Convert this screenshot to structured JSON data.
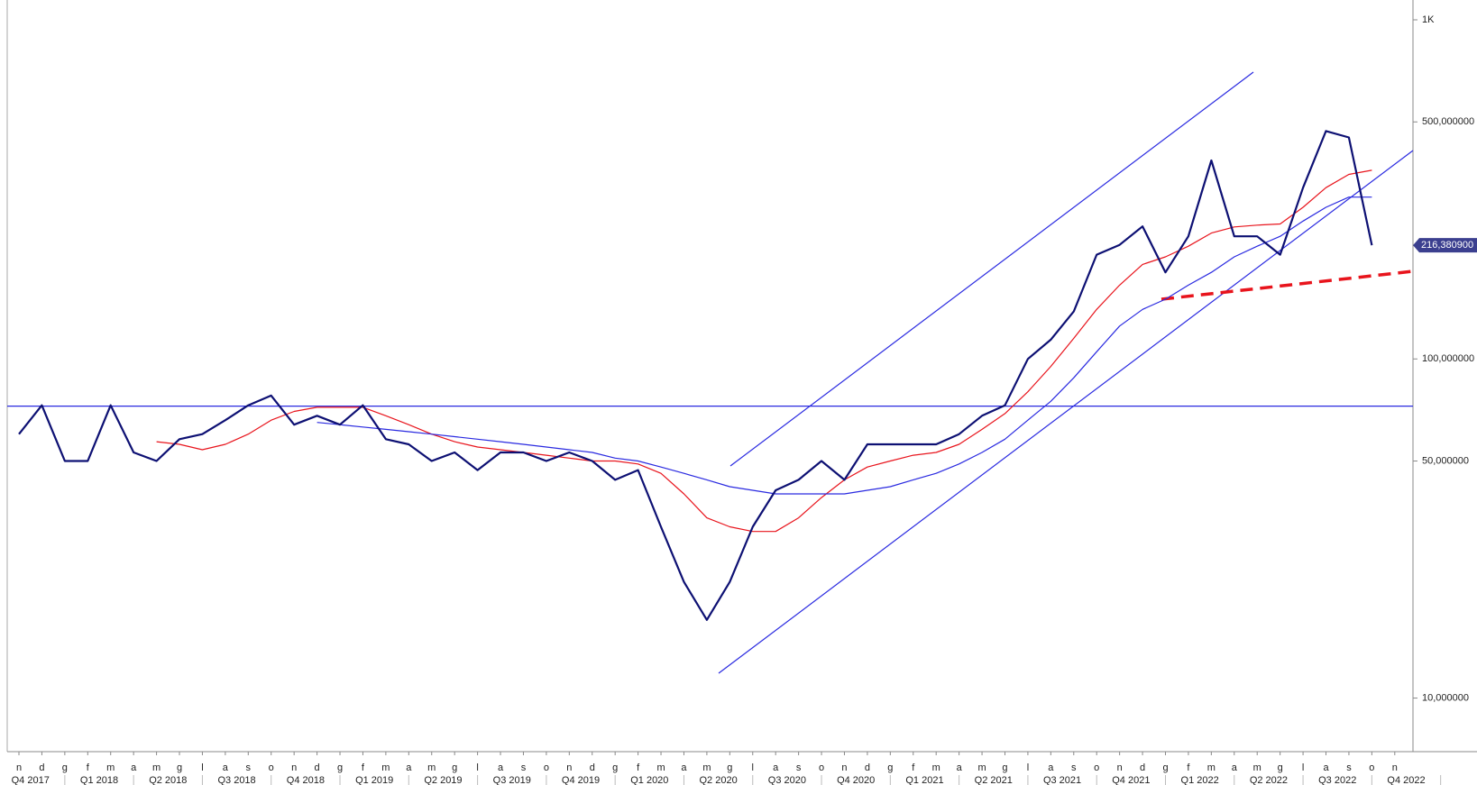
{
  "chart_data": {
    "type": "line",
    "log_scale": true,
    "grid": false,
    "x": [
      "2017-11",
      "2017-12",
      "2018-01",
      "2018-02",
      "2018-03",
      "2018-04",
      "2018-05",
      "2018-06",
      "2018-07",
      "2018-08",
      "2018-09",
      "2018-10",
      "2018-11",
      "2018-12",
      "2019-01",
      "2019-02",
      "2019-03",
      "2019-04",
      "2019-05",
      "2019-06",
      "2019-07",
      "2019-08",
      "2019-09",
      "2019-10",
      "2019-11",
      "2019-12",
      "2020-01",
      "2020-02",
      "2020-03",
      "2020-04",
      "2020-05",
      "2020-06",
      "2020-07",
      "2020-08",
      "2020-09",
      "2020-10",
      "2020-11",
      "2020-12",
      "2021-01",
      "2021-02",
      "2021-03",
      "2021-04",
      "2021-05",
      "2021-06",
      "2021-07",
      "2021-08",
      "2021-09",
      "2021-10",
      "2021-11",
      "2021-12",
      "2022-01",
      "2022-02",
      "2022-03",
      "2022-04",
      "2022-05",
      "2022-06",
      "2022-07",
      "2022-08",
      "2022-09",
      "2022-10"
    ],
    "series": [
      {
        "color": "#0d1073",
        "values": [
          60,
          73,
          50,
          50,
          73,
          53,
          50,
          58,
          60,
          66,
          73,
          78,
          64,
          68,
          64,
          73,
          58,
          56,
          50,
          53,
          47,
          53,
          53,
          50,
          53,
          50,
          44,
          47,
          32,
          22,
          17,
          22,
          32,
          41,
          44,
          50,
          44,
          56,
          56,
          56,
          56,
          60,
          68,
          73,
          100,
          114,
          138,
          203,
          217,
          246,
          180,
          230,
          385,
          230,
          230,
          203,
          320,
          470,
          450,
          216.3809
        ],
        "value_labels": [
          null,
          null,
          null,
          null,
          null,
          null,
          null,
          null,
          null,
          null,
          null,
          null,
          null,
          null,
          null,
          null,
          null,
          null,
          null,
          null,
          null,
          null,
          null,
          null,
          null,
          null,
          null,
          null,
          null,
          null,
          null,
          null,
          null,
          null,
          null,
          null,
          null,
          null,
          null,
          null,
          null,
          null,
          null,
          null,
          null,
          null,
          null,
          null,
          null,
          null,
          null,
          null,
          null,
          null,
          null,
          null,
          null,
          null,
          null,
          "216,380900"
        ]
      },
      {
        "color": "#e8141c",
        "values": [
          null,
          null,
          null,
          null,
          null,
          null,
          57,
          56,
          54,
          56,
          60,
          66,
          70,
          72,
          72,
          72,
          68,
          64,
          60,
          57,
          55,
          54,
          53,
          52,
          51,
          50,
          50,
          49,
          46,
          40,
          34,
          32,
          31,
          31,
          34,
          39,
          44,
          48,
          50,
          52,
          53,
          56,
          62,
          69,
          80,
          95,
          115,
          140,
          165,
          190,
          200,
          215,
          235,
          245,
          248,
          250,
          280,
          320,
          350,
          360
        ]
      },
      {
        "color": "#2a2ae0",
        "values": [
          null,
          null,
          null,
          null,
          null,
          null,
          null,
          null,
          null,
          null,
          null,
          null,
          null,
          65,
          64,
          63,
          62,
          61,
          60,
          59,
          58,
          57,
          56,
          55,
          54,
          53,
          51,
          50,
          48,
          46,
          44,
          42,
          41,
          40,
          40,
          40,
          40,
          41,
          42,
          44,
          46,
          49,
          53,
          58,
          66,
          75,
          88,
          105,
          125,
          140,
          150,
          165,
          180,
          200,
          215,
          230,
          255,
          280,
          300,
          300
        ]
      }
    ],
    "reference_line": 72.6,
    "ylim": [
      6.95,
      1144
    ],
    "yticks": [
      {
        "value": 10,
        "label": "10,000000"
      },
      {
        "value": 50,
        "label": "50,000000"
      },
      {
        "value": 100,
        "label": "100,000000"
      },
      {
        "value": 500,
        "label": "500,000000"
      },
      {
        "value": 1000,
        "label": "1K"
      }
    ],
    "xticks": [
      {
        "value": "2017-11",
        "label": "n"
      },
      {
        "value": "2017-12",
        "label": "d"
      },
      {
        "value": "2018-01",
        "label": "g"
      },
      {
        "value": "2018-02",
        "label": "f"
      },
      {
        "value": "2018-03",
        "label": "m"
      },
      {
        "value": "2018-04",
        "label": "a"
      },
      {
        "value": "2018-05",
        "label": "m"
      },
      {
        "value": "2018-06",
        "label": "g"
      },
      {
        "value": "2018-07",
        "label": "l"
      },
      {
        "value": "2018-08",
        "label": "a"
      },
      {
        "value": "2018-09",
        "label": "s"
      },
      {
        "value": "2018-10",
        "label": "o"
      },
      {
        "value": "2018-11",
        "label": "n"
      },
      {
        "value": "2018-12",
        "label": "d"
      },
      {
        "value": "2019-01",
        "label": "g"
      },
      {
        "value": "2019-02",
        "label": "f"
      },
      {
        "value": "2019-03",
        "label": "m"
      },
      {
        "value": "2019-04",
        "label": "a"
      },
      {
        "value": "2019-05",
        "label": "m"
      },
      {
        "value": "2019-06",
        "label": "g"
      },
      {
        "value": "2019-07",
        "label": "l"
      },
      {
        "value": "2019-08",
        "label": "a"
      },
      {
        "value": "2019-09",
        "label": "s"
      },
      {
        "value": "2019-10",
        "label": "o"
      },
      {
        "value": "2019-11",
        "label": "n"
      },
      {
        "value": "2019-12",
        "label": "d"
      },
      {
        "value": "2020-01",
        "label": "g"
      },
      {
        "value": "2020-02",
        "label": "f"
      },
      {
        "value": "2020-03",
        "label": "m"
      },
      {
        "value": "2020-04",
        "label": "a"
      },
      {
        "value": "2020-05",
        "label": "m"
      },
      {
        "value": "2020-06",
        "label": "g"
      },
      {
        "value": "2020-07",
        "label": "l"
      },
      {
        "value": "2020-08",
        "label": "a"
      },
      {
        "value": "2020-09",
        "label": "s"
      },
      {
        "value": "2020-10",
        "label": "o"
      },
      {
        "value": "2020-11",
        "label": "n"
      },
      {
        "value": "2020-12",
        "label": "d"
      },
      {
        "value": "2021-01",
        "label": "g"
      },
      {
        "value": "2021-02",
        "label": "f"
      },
      {
        "value": "2021-03",
        "label": "m"
      },
      {
        "value": "2021-04",
        "label": "a"
      },
      {
        "value": "2021-05",
        "label": "m"
      },
      {
        "value": "2021-06",
        "label": "g"
      },
      {
        "value": "2021-07",
        "label": "l"
      },
      {
        "value": "2021-08",
        "label": "a"
      },
      {
        "value": "2021-09",
        "label": "s"
      },
      {
        "value": "2021-10",
        "label": "o"
      },
      {
        "value": "2021-11",
        "label": "n"
      },
      {
        "value": "2021-12",
        "label": "d"
      },
      {
        "value": "2022-01",
        "label": "g"
      },
      {
        "value": "2022-02",
        "label": "f"
      },
      {
        "value": "2022-03",
        "label": "m"
      },
      {
        "value": "2022-04",
        "label": "a"
      },
      {
        "value": "2022-05",
        "label": "m"
      },
      {
        "value": "2022-06",
        "label": "g"
      },
      {
        "value": "2022-07",
        "label": "l"
      },
      {
        "value": "2022-08",
        "label": "a"
      },
      {
        "value": "2022-09",
        "label": "s"
      },
      {
        "value": "2022-10",
        "label": "o"
      },
      {
        "value": "2022-11",
        "label": "n"
      }
    ],
    "quarters": [
      "Q4 2017",
      "Q1 2018",
      "Q2 2018",
      "Q3 2018",
      "Q4 2018",
      "Q1 2019",
      "Q2 2019",
      "Q3 2019",
      "Q4 2019",
      "Q1 2020",
      "Q2 2020",
      "Q3 2020",
      "Q4 2020",
      "Q1 2021",
      "Q2 2021",
      "Q3 2021",
      "Q4 2021",
      "Q1 2022",
      "Q2 2022",
      "Q3 2022",
      "Q4 2022"
    ]
  }
}
